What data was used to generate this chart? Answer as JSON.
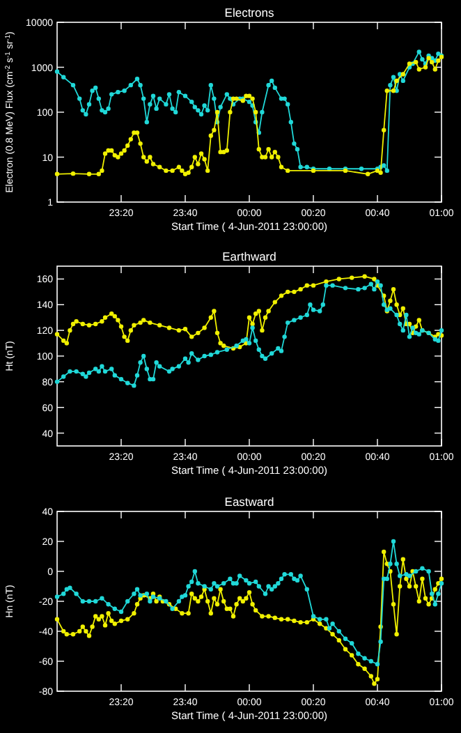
{
  "chart_data": [
    {
      "type": "line",
      "title": "Electrons",
      "xlabel": "Start Time ( 4-Jun-2011 23:00:00)",
      "ylabel": "Electron (0.8 MeV) Flux (cm$^{-2}$ s$^{-1}$ sr$^{-1}$)",
      "log": "y",
      "marker": "circle",
      "xlim": [
        "2011-06-04T23:00",
        "2011-06-05T01:00"
      ],
      "xticks": [
        {
          "value": "2011-06-04T23:20",
          "label": "23:20"
        },
        {
          "value": "2011-06-04T23:40",
          "label": "23:40"
        },
        {
          "value": "2011-06-05T00:00",
          "label": "00:00"
        },
        {
          "value": "2011-06-05T00:20",
          "label": "00:20"
        },
        {
          "value": "2011-06-05T00:40",
          "label": "00:40"
        },
        {
          "value": "2011-06-05T01:00",
          "label": "01:00"
        }
      ],
      "ylim": [
        1,
        10000
      ],
      "yticks": [
        1,
        10,
        100,
        1000,
        10000
      ],
      "series": [
        {
          "color": "#20d8d8",
          "x": [
            "2011-06-04T23:00",
            "2011-06-04T23:02",
            "2011-06-04T23:05",
            "2011-06-04T23:07",
            "2011-06-04T23:08",
            "2011-06-04T23:09",
            "2011-06-04T23:10",
            "2011-06-04T23:11",
            "2011-06-04T23:12",
            "2011-06-04T23:13",
            "2011-06-04T23:14",
            "2011-06-04T23:15",
            "2011-06-04T23:16",
            "2011-06-04T23:17",
            "2011-06-04T23:19",
            "2011-06-04T23:21",
            "2011-06-04T23:23",
            "2011-06-04T23:25",
            "2011-06-04T23:26",
            "2011-06-04T23:27",
            "2011-06-04T23:28",
            "2011-06-04T23:29",
            "2011-06-04T23:30",
            "2011-06-04T23:31",
            "2011-06-04T23:32",
            "2011-06-04T23:34",
            "2011-06-04T23:35",
            "2011-06-04T23:36",
            "2011-06-04T23:37",
            "2011-06-04T23:38",
            "2011-06-04T23:40",
            "2011-06-04T23:42",
            "2011-06-04T23:43",
            "2011-06-04T23:44",
            "2011-06-04T23:45",
            "2011-06-04T23:46",
            "2011-06-04T23:47",
            "2011-06-04T23:48",
            "2011-06-04T23:49",
            "2011-06-04T23:50",
            "2011-06-04T23:51",
            "2011-06-04T23:53",
            "2011-06-04T23:54",
            "2011-06-04T23:55",
            "2011-06-04T23:57",
            "2011-06-04T23:58",
            "2011-06-05T00:00",
            "2011-06-05T00:01",
            "2011-06-05T00:02",
            "2011-06-05T00:03",
            "2011-06-05T00:04",
            "2011-06-05T00:06",
            "2011-06-05T00:07",
            "2011-06-05T00:08",
            "2011-06-05T00:10",
            "2011-06-05T00:11",
            "2011-06-05T00:12",
            "2011-06-05T00:13",
            "2011-06-05T00:14",
            "2011-06-05T00:15",
            "2011-06-05T00:16",
            "2011-06-05T00:18",
            "2011-06-05T00:20",
            "2011-06-05T00:25",
            "2011-06-05T00:30",
            "2011-06-05T00:35",
            "2011-06-05T00:40",
            "2011-06-05T00:41",
            "2011-06-05T00:42",
            "2011-06-05T00:43",
            "2011-06-05T00:44",
            "2011-06-05T00:45",
            "2011-06-05T00:46",
            "2011-06-05T00:47",
            "2011-06-05T00:48",
            "2011-06-05T00:50",
            "2011-06-05T00:51",
            "2011-06-05T00:53",
            "2011-06-05T00:54",
            "2011-06-05T00:55",
            "2011-06-05T00:56",
            "2011-06-05T00:57",
            "2011-06-05T00:58",
            "2011-06-05T00:59",
            "2011-06-05T01:00"
          ],
          "values": [
            800,
            600,
            400,
            200,
            110,
            90,
            150,
            300,
            350,
            200,
            110,
            100,
            120,
            250,
            280,
            300,
            400,
            550,
            400,
            200,
            60,
            150,
            230,
            120,
            200,
            150,
            250,
            120,
            100,
            280,
            230,
            170,
            130,
            110,
            90,
            140,
            110,
            400,
            200,
            60,
            130,
            250,
            200,
            150,
            200,
            200,
            170,
            140,
            60,
            35,
            100,
            400,
            500,
            350,
            200,
            200,
            150,
            60,
            20,
            15,
            6,
            6,
            5.5,
            5.5,
            5.5,
            5.5,
            5.5,
            6,
            6.5,
            5,
            400,
            600,
            300,
            700,
            500,
            1000,
            1200,
            2200,
            1500,
            1200,
            1800,
            1600,
            1400,
            2000,
            1800
          ]
        },
        {
          "color": "#f0f000",
          "x": [
            "2011-06-04T23:00",
            "2011-06-04T23:05",
            "2011-06-04T23:10",
            "2011-06-04T23:13",
            "2011-06-04T23:14",
            "2011-06-04T23:15",
            "2011-06-04T23:16",
            "2011-06-04T23:17",
            "2011-06-04T23:18",
            "2011-06-04T23:19",
            "2011-06-04T23:20",
            "2011-06-04T23:21",
            "2011-06-04T23:22",
            "2011-06-04T23:23",
            "2011-06-04T23:24",
            "2011-06-04T23:25",
            "2011-06-04T23:26",
            "2011-06-04T23:27",
            "2011-06-04T23:28",
            "2011-06-04T23:29",
            "2011-06-04T23:30",
            "2011-06-04T23:32",
            "2011-06-04T23:34",
            "2011-06-04T23:36",
            "2011-06-04T23:38",
            "2011-06-04T23:39",
            "2011-06-04T23:40",
            "2011-06-04T23:41",
            "2011-06-04T23:42",
            "2011-06-04T23:43",
            "2011-06-04T23:44",
            "2011-06-04T23:45",
            "2011-06-04T23:46",
            "2011-06-04T23:47",
            "2011-06-04T23:48",
            "2011-06-04T23:49",
            "2011-06-04T23:50",
            "2011-06-04T23:51",
            "2011-06-04T23:52",
            "2011-06-04T23:53",
            "2011-06-04T23:54",
            "2011-06-04T23:55",
            "2011-06-04T23:56",
            "2011-06-04T23:58",
            "2011-06-04T23:59",
            "2011-06-05T00:00",
            "2011-06-05T00:01",
            "2011-06-05T00:02",
            "2011-06-05T00:03",
            "2011-06-05T00:04",
            "2011-06-05T00:05",
            "2011-06-05T00:06",
            "2011-06-05T00:07",
            "2011-06-05T00:08",
            "2011-06-05T00:09",
            "2011-06-05T00:10",
            "2011-06-05T00:12",
            "2011-06-05T00:20",
            "2011-06-05T00:30",
            "2011-06-05T00:37",
            "2011-06-05T00:40",
            "2011-06-05T00:41",
            "2011-06-05T00:42",
            "2011-06-05T00:43",
            "2011-06-05T00:45",
            "2011-06-05T00:46",
            "2011-06-05T00:48",
            "2011-06-05T00:50",
            "2011-06-05T00:52",
            "2011-06-05T00:53",
            "2011-06-05T00:55",
            "2011-06-05T00:56",
            "2011-06-05T00:57",
            "2011-06-05T00:58",
            "2011-06-05T00:59",
            "2011-06-05T01:00"
          ],
          "values": [
            4.2,
            4.3,
            4.2,
            4.2,
            5,
            12,
            14,
            14,
            11,
            10,
            12,
            14,
            18,
            25,
            35,
            35,
            20,
            10,
            8,
            10,
            7,
            6,
            5,
            5,
            6,
            5,
            4.2,
            4.5,
            6,
            10,
            7,
            12,
            9,
            5,
            30,
            40,
            100,
            13,
            13,
            14,
            100,
            200,
            200,
            180,
            230,
            230,
            200,
            100,
            15,
            10,
            10,
            15,
            10,
            13,
            10,
            6,
            5,
            5,
            5,
            4.2,
            5,
            4.5,
            40,
            300,
            300,
            500,
            700,
            1200,
            1300,
            900,
            1000,
            1600,
            1300,
            900,
            1400,
            1700
          ]
        }
      ]
    },
    {
      "type": "line",
      "title": "Earthward",
      "xlabel": "Start Time ( 4-Jun-2011 23:00:00)",
      "ylabel": "Ht (nT)",
      "marker": "circle",
      "xlim": [
        "2011-06-04T23:00",
        "2011-06-05T01:00"
      ],
      "xticks": [
        {
          "value": "2011-06-04T23:20",
          "label": "23:20"
        },
        {
          "value": "2011-06-04T23:40",
          "label": "23:40"
        },
        {
          "value": "2011-06-05T00:00",
          "label": "00:00"
        },
        {
          "value": "2011-06-05T00:20",
          "label": "00:20"
        },
        {
          "value": "2011-06-05T00:40",
          "label": "00:40"
        },
        {
          "value": "2011-06-05T01:00",
          "label": "01:00"
        }
      ],
      "ylim": [
        30,
        170
      ],
      "yticks": [
        40,
        60,
        80,
        100,
        120,
        140,
        160
      ],
      "series": [
        {
          "color": "#f0f000",
          "x": [
            "2011-06-04T23:00",
            "2011-06-04T23:02",
            "2011-06-04T23:03",
            "2011-06-04T23:04",
            "2011-06-04T23:05",
            "2011-06-04T23:06",
            "2011-06-04T23:08",
            "2011-06-04T23:10",
            "2011-06-04T23:12",
            "2011-06-04T23:14",
            "2011-06-04T23:15",
            "2011-06-04T23:17",
            "2011-06-04T23:18",
            "2011-06-04T23:19",
            "2011-06-04T23:20",
            "2011-06-04T23:21",
            "2011-06-04T23:22",
            "2011-06-04T23:23",
            "2011-06-04T23:24",
            "2011-06-04T23:26",
            "2011-06-04T23:27",
            "2011-06-04T23:29",
            "2011-06-04T23:32",
            "2011-06-04T23:35",
            "2011-06-04T23:38",
            "2011-06-04T23:40",
            "2011-06-04T23:42",
            "2011-06-04T23:44",
            "2011-06-04T23:46",
            "2011-06-04T23:48",
            "2011-06-04T23:49",
            "2011-06-04T23:50",
            "2011-06-04T23:51",
            "2011-06-04T23:52",
            "2011-06-04T23:55",
            "2011-06-04T23:57",
            "2011-06-04T23:59",
            "2011-06-05T00:00",
            "2011-06-05T00:01",
            "2011-06-05T00:02",
            "2011-06-05T00:03",
            "2011-06-05T00:04",
            "2011-06-05T00:05",
            "2011-06-05T00:06",
            "2011-06-05T00:08",
            "2011-06-05T00:10",
            "2011-06-05T00:12",
            "2011-06-05T00:14",
            "2011-06-05T00:16",
            "2011-06-05T00:18",
            "2011-06-05T00:20",
            "2011-06-05T00:24",
            "2011-06-05T00:28",
            "2011-06-05T00:32",
            "2011-06-05T00:36",
            "2011-06-05T00:39",
            "2011-06-05T00:40",
            "2011-06-05T00:42",
            "2011-06-05T00:43",
            "2011-06-05T00:44",
            "2011-06-05T00:45",
            "2011-06-05T00:46",
            "2011-06-05T00:47",
            "2011-06-05T00:48",
            "2011-06-05T00:49",
            "2011-06-05T00:50",
            "2011-06-05T00:51",
            "2011-06-05T00:52",
            "2011-06-05T00:53",
            "2011-06-05T00:54",
            "2011-06-05T00:56",
            "2011-06-05T00:58",
            "2011-06-05T00:59",
            "2011-06-05T01:00"
          ],
          "values": [
            117,
            112,
            110,
            120,
            125,
            127,
            125,
            124,
            125,
            127,
            130,
            133,
            131,
            128,
            123,
            115,
            112,
            120,
            124,
            126,
            128,
            126,
            124,
            122,
            120,
            121,
            115,
            118,
            122,
            130,
            135,
            118,
            110,
            108,
            106,
            107,
            110,
            130,
            125,
            133,
            135,
            120,
            130,
            135,
            142,
            147,
            150,
            150,
            152,
            155,
            155,
            158,
            160,
            161,
            162,
            160,
            155,
            147,
            135,
            143,
            152,
            140,
            132,
            137,
            125,
            125,
            118,
            123,
            128,
            120,
            118,
            115,
            117,
            116
          ]
        },
        {
          "color": "#20d8d8",
          "x": [
            "2011-06-04T23:00",
            "2011-06-04T23:02",
            "2011-06-04T23:04",
            "2011-06-04T23:06",
            "2011-06-04T23:08",
            "2011-06-04T23:09",
            "2011-06-04T23:10",
            "2011-06-04T23:12",
            "2011-06-04T23:13",
            "2011-06-04T23:14",
            "2011-06-04T23:15",
            "2011-06-04T23:17",
            "2011-06-04T23:18",
            "2011-06-04T23:20",
            "2011-06-04T23:22",
            "2011-06-04T23:24",
            "2011-06-04T23:25",
            "2011-06-04T23:26",
            "2011-06-04T23:27",
            "2011-06-04T23:28",
            "2011-06-04T23:29",
            "2011-06-04T23:30",
            "2011-06-04T23:31",
            "2011-06-04T23:32",
            "2011-06-04T23:35",
            "2011-06-04T23:36",
            "2011-06-04T23:38",
            "2011-06-04T23:40",
            "2011-06-04T23:41",
            "2011-06-04T23:42",
            "2011-06-04T23:44",
            "2011-06-04T23:46",
            "2011-06-04T23:48",
            "2011-06-04T23:50",
            "2011-06-04T23:53",
            "2011-06-04T23:56",
            "2011-06-04T23:58",
            "2011-06-04T23:59",
            "2011-06-05T00:00",
            "2011-06-05T00:01",
            "2011-06-05T00:02",
            "2011-06-05T00:03",
            "2011-06-05T00:04",
            "2011-06-05T00:05",
            "2011-06-05T00:07",
            "2011-06-05T00:09",
            "2011-06-05T00:10",
            "2011-06-05T00:11",
            "2011-06-05T00:12",
            "2011-06-05T00:14",
            "2011-06-05T00:16",
            "2011-06-05T00:18",
            "2011-06-05T00:19",
            "2011-06-05T00:20",
            "2011-06-05T00:22",
            "2011-06-05T00:23",
            "2011-06-05T00:24",
            "2011-06-05T00:26",
            "2011-06-05T00:30",
            "2011-06-05T00:34",
            "2011-06-05T00:36",
            "2011-06-05T00:38",
            "2011-06-05T00:39",
            "2011-06-05T00:40",
            "2011-06-05T00:41",
            "2011-06-05T00:42",
            "2011-06-05T00:43",
            "2011-06-05T00:44",
            "2011-06-05T00:46",
            "2011-06-05T00:47",
            "2011-06-05T00:48",
            "2011-06-05T00:49",
            "2011-06-05T00:50",
            "2011-06-05T00:51",
            "2011-06-05T00:52",
            "2011-06-05T00:53",
            "2011-06-05T00:54",
            "2011-06-05T00:56",
            "2011-06-05T00:58",
            "2011-06-05T00:59",
            "2011-06-05T01:00"
          ],
          "values": [
            80,
            84,
            88,
            88,
            86,
            84,
            87,
            90,
            88,
            92,
            88,
            90,
            85,
            82,
            79,
            77,
            85,
            95,
            100,
            90,
            82,
            82,
            95,
            92,
            88,
            90,
            92,
            98,
            95,
            102,
            97,
            100,
            101,
            103,
            105,
            108,
            112,
            113,
            110,
            122,
            112,
            105,
            100,
            98,
            102,
            106,
            104,
            115,
            126,
            128,
            130,
            132,
            140,
            136,
            135,
            140,
            155,
            155,
            153,
            152,
            153,
            156,
            152,
            158,
            155,
            140,
            136,
            137,
            132,
            125,
            120,
            132,
            115,
            122,
            118,
            117,
            120,
            118,
            113,
            112,
            120
          ]
        }
      ]
    },
    {
      "type": "line",
      "title": "Eastward",
      "xlabel": "Start Time ( 4-Jun-2011 23:00:00)",
      "ylabel": "Hn (nT)",
      "marker": "circle",
      "xlim": [
        "2011-06-04T23:00",
        "2011-06-05T01:00"
      ],
      "xticks": [
        {
          "value": "2011-06-04T23:20",
          "label": "23:20"
        },
        {
          "value": "2011-06-04T23:40",
          "label": "23:40"
        },
        {
          "value": "2011-06-05T00:00",
          "label": "00:00"
        },
        {
          "value": "2011-06-05T00:20",
          "label": "00:20"
        },
        {
          "value": "2011-06-05T00:40",
          "label": "00:40"
        },
        {
          "value": "2011-06-05T01:00",
          "label": "01:00"
        }
      ],
      "ylim": [
        -80,
        40
      ],
      "yticks": [
        -80,
        -60,
        -40,
        -20,
        0,
        20,
        40
      ],
      "series": [
        {
          "color": "#f0f000",
          "x": [
            "2011-06-04T23:00",
            "2011-06-04T23:02",
            "2011-06-04T23:03",
            "2011-06-04T23:05",
            "2011-06-04T23:07",
            "2011-06-04T23:08",
            "2011-06-04T23:09",
            "2011-06-04T23:10",
            "2011-06-04T23:11",
            "2011-06-04T23:12",
            "2011-06-04T23:13",
            "2011-06-04T23:14",
            "2011-06-04T23:15",
            "2011-06-04T23:16",
            "2011-06-04T23:17",
            "2011-06-04T23:18",
            "2011-06-04T23:20",
            "2011-06-04T23:22",
            "2011-06-04T23:24",
            "2011-06-04T23:25",
            "2011-06-04T23:26",
            "2011-06-04T23:27",
            "2011-06-04T23:29",
            "2011-06-04T23:30",
            "2011-06-04T23:31",
            "2011-06-04T23:32",
            "2011-06-04T23:33",
            "2011-06-04T23:35",
            "2011-06-04T23:37",
            "2011-06-04T23:39",
            "2011-06-04T23:41",
            "2011-06-04T23:42",
            "2011-06-04T23:43",
            "2011-06-04T23:44",
            "2011-06-04T23:45",
            "2011-06-04T23:46",
            "2011-06-04T23:47",
            "2011-06-04T23:48",
            "2011-06-04T23:49",
            "2011-06-04T23:50",
            "2011-06-04T23:51",
            "2011-06-04T23:52",
            "2011-06-04T23:53",
            "2011-06-04T23:54",
            "2011-06-04T23:55",
            "2011-06-04T23:56",
            "2011-06-04T23:57",
            "2011-06-04T23:58",
            "2011-06-04T23:59",
            "2011-06-05T00:00",
            "2011-06-05T00:01",
            "2011-06-05T00:02",
            "2011-06-05T00:04",
            "2011-06-05T00:06",
            "2011-06-05T00:08",
            "2011-06-05T00:10",
            "2011-06-05T00:12",
            "2011-06-05T00:14",
            "2011-06-05T00:16",
            "2011-06-05T00:18",
            "2011-06-05T00:20",
            "2011-06-05T00:22",
            "2011-06-05T00:24",
            "2011-06-05T00:26",
            "2011-06-05T00:28",
            "2011-06-05T00:30",
            "2011-06-05T00:32",
            "2011-06-05T00:34",
            "2011-06-05T00:36",
            "2011-06-05T00:38",
            "2011-06-05T00:39",
            "2011-06-05T00:40",
            "2011-06-05T00:41",
            "2011-06-05T00:42",
            "2011-06-05T00:43",
            "2011-06-05T00:44",
            "2011-06-05T00:45",
            "2011-06-05T00:46",
            "2011-06-05T00:47",
            "2011-06-05T00:48",
            "2011-06-05T00:49",
            "2011-06-05T00:50",
            "2011-06-05T00:51",
            "2011-06-05T00:52",
            "2011-06-05T00:53",
            "2011-06-05T00:54",
            "2011-06-05T00:55",
            "2011-06-05T00:56",
            "2011-06-05T00:57",
            "2011-06-05T00:58",
            "2011-06-05T00:59",
            "2011-06-05T01:00"
          ],
          "values": [
            -32,
            -40,
            -42,
            -42,
            -40,
            -37,
            -40,
            -43,
            -37,
            -30,
            -32,
            -30,
            -36,
            -28,
            -33,
            -35,
            -33,
            -32,
            -28,
            -22,
            -18,
            -16,
            -18,
            -15,
            -20,
            -17,
            -20,
            -22,
            -25,
            -28,
            -28,
            -15,
            -18,
            -20,
            -17,
            -12,
            -20,
            -28,
            -18,
            -22,
            -12,
            -20,
            -25,
            -25,
            -30,
            -22,
            -18,
            -20,
            -18,
            -14,
            -22,
            -26,
            -30,
            -30,
            -31,
            -32,
            -32,
            -33,
            -34,
            -34,
            -32,
            -35,
            -38,
            -42,
            -46,
            -52,
            -56,
            -62,
            -65,
            -70,
            -75,
            -72,
            -37,
            13,
            5,
            0,
            -22,
            -42,
            -10,
            8,
            -5,
            -10,
            0,
            -10,
            -20,
            -5,
            -18,
            -22,
            -18,
            -12,
            -8,
            -5
          ]
        },
        {
          "color": "#20d8d8",
          "x": [
            "2011-06-04T23:00",
            "2011-06-04T23:02",
            "2011-06-04T23:03",
            "2011-06-04T23:04",
            "2011-06-04T23:06",
            "2011-06-04T23:08",
            "2011-06-04T23:10",
            "2011-06-04T23:12",
            "2011-06-04T23:14",
            "2011-06-04T23:16",
            "2011-06-04T23:18",
            "2011-06-04T23:20",
            "2011-06-04T23:22",
            "2011-06-04T23:24",
            "2011-06-04T23:25",
            "2011-06-04T23:26",
            "2011-06-04T23:28",
            "2011-06-04T23:29",
            "2011-06-04T23:30",
            "2011-06-04T23:32",
            "2011-06-04T23:34",
            "2011-06-04T23:36",
            "2011-06-04T23:38",
            "2011-06-04T23:39",
            "2011-06-04T23:40",
            "2011-06-04T23:41",
            "2011-06-04T23:42",
            "2011-06-04T23:43",
            "2011-06-04T23:44",
            "2011-06-04T23:46",
            "2011-06-04T23:48",
            "2011-06-04T23:49",
            "2011-06-04T23:50",
            "2011-06-04T23:52",
            "2011-06-04T23:54",
            "2011-06-04T23:55",
            "2011-06-04T23:56",
            "2011-06-04T23:57",
            "2011-06-04T23:59",
            "2011-06-05T00:00",
            "2011-06-05T00:02",
            "2011-06-05T00:03",
            "2011-06-05T00:05",
            "2011-06-05T00:06",
            "2011-06-05T00:07",
            "2011-06-05T00:08",
            "2011-06-05T00:09",
            "2011-06-05T00:10",
            "2011-06-05T00:11",
            "2011-06-05T00:13",
            "2011-06-05T00:14",
            "2011-06-05T00:15",
            "2011-06-05T00:16",
            "2011-06-05T00:18",
            "2011-06-05T00:20",
            "2011-06-05T00:22",
            "2011-06-05T00:24",
            "2011-06-05T00:25",
            "2011-06-05T00:26",
            "2011-06-05T00:28",
            "2011-06-05T00:30",
            "2011-06-05T00:32",
            "2011-06-05T00:34",
            "2011-06-05T00:36",
            "2011-06-05T00:38",
            "2011-06-05T00:40",
            "2011-06-05T00:41",
            "2011-06-05T00:42",
            "2011-06-05T00:43",
            "2011-06-05T00:44",
            "2011-06-05T00:45",
            "2011-06-05T00:46",
            "2011-06-05T00:47",
            "2011-06-05T00:49",
            "2011-06-05T00:50",
            "2011-06-05T00:52",
            "2011-06-05T00:54",
            "2011-06-05T00:56",
            "2011-06-05T00:57",
            "2011-06-05T00:58",
            "2011-06-05T00:59",
            "2011-06-05T01:00"
          ],
          "values": [
            -17,
            -15,
            -12,
            -11,
            -15,
            -20,
            -20,
            -20,
            -18,
            -22,
            -25,
            -27,
            -20,
            -15,
            -12,
            -16,
            -15,
            -20,
            -17,
            -18,
            -20,
            -25,
            -20,
            -17,
            -16,
            -10,
            -7,
            0,
            -8,
            -10,
            -12,
            -8,
            -10,
            -8,
            -5,
            -8,
            -8,
            -3,
            -6,
            -8,
            -7,
            -10,
            -15,
            -10,
            -12,
            -10,
            -8,
            -5,
            -2,
            -2,
            -5,
            -6,
            -3,
            -12,
            -30,
            -32,
            -32,
            -38,
            -35,
            -40,
            -45,
            -48,
            -55,
            -58,
            -60,
            -62,
            -47,
            -5,
            -5,
            5,
            20,
            5,
            -3,
            -2,
            -3,
            0,
            2,
            0,
            -15,
            -22,
            -15,
            -8
          ]
        }
      ]
    }
  ]
}
